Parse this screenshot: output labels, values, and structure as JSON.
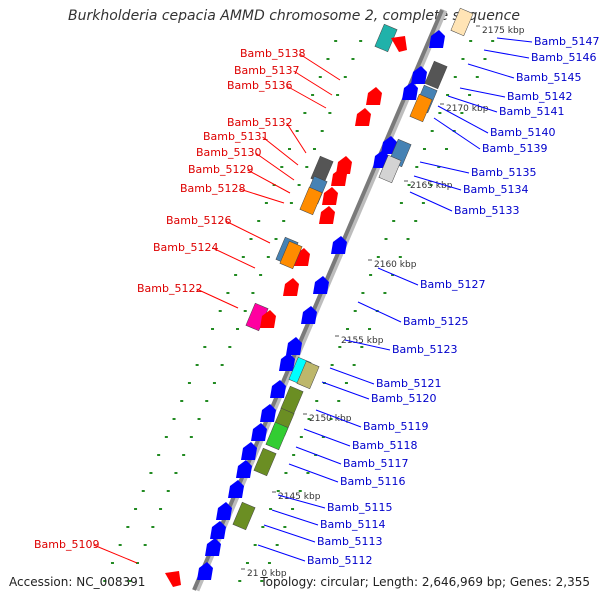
{
  "title": "Burkholderia cepacia AMMD chromosome 2, complete sequence",
  "footer": {
    "accession": "Accession: NC_008391",
    "summary": "Topology: circular; Length: 2,646,969 bp; Genes: 2,355"
  },
  "colors": {
    "left_label": "#dd0000",
    "right_label": "#0000cc",
    "backbone": "#808080",
    "tick": "#228b22"
  },
  "ticks": [
    "2175 kbp",
    "2170 kbp",
    "2165 kbp",
    "2160 kbp",
    "2155 kbp",
    "2150 kbp",
    "2145 kbp",
    "21 0 kbp"
  ],
  "left_genes": [
    "Bamb_5138",
    "Bamb_5137",
    "Bamb_5136",
    "Bamb_5132",
    "Bamb_5131",
    "Bamb_5130",
    "Bamb_5129",
    "Bamb_5128",
    "Bamb_5126",
    "Bamb_5124",
    "Bamb_5122",
    "Bamb_5109"
  ],
  "right_genes": [
    "Bamb_5147",
    "Bamb_5146",
    "Bamb_5145",
    "Bamb_5142",
    "Bamb_5141",
    "Bamb_5140",
    "Bamb_5139",
    "Bamb_5135",
    "Bamb_5134",
    "Bamb_5133",
    "Bamb_5127",
    "Bamb_5125",
    "Bamb_5123",
    "Bamb_5121",
    "Bamb_5120",
    "Bamb_5119",
    "Bamb_5118",
    "Bamb_5117",
    "Bamb_5116",
    "Bamb_5115",
    "Bamb_5114",
    "Bamb_5113",
    "Bamb_5112"
  ]
}
